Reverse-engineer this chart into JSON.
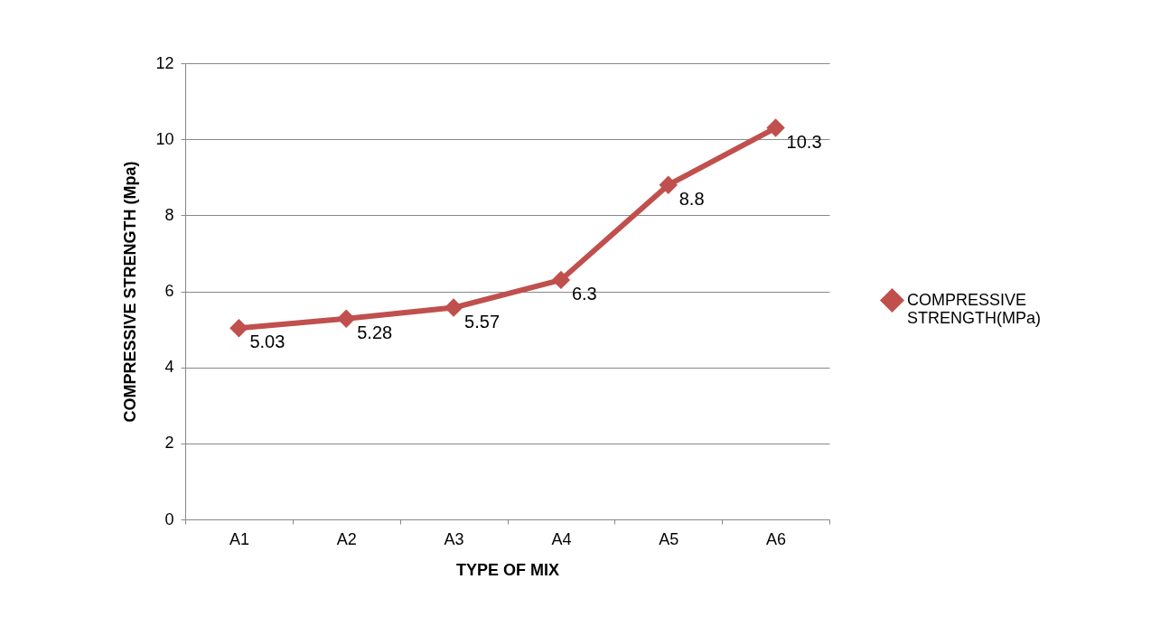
{
  "chart_data": {
    "type": "line",
    "xlabel": "TYPE OF MIX",
    "ylabel": "COMPRESSIVE STRENGTH (Mpa)",
    "categories": [
      "A1",
      "A2",
      "A3",
      "A4",
      "A5",
      "A6"
    ],
    "series": [
      {
        "name": "COMPRESSIVE STRENGTH(MPa)",
        "color": "#c0504d",
        "values": [
          5.03,
          5.28,
          5.57,
          6.3,
          8.8,
          10.3
        ]
      }
    ],
    "ylim": [
      0,
      12
    ],
    "yticks": [
      0,
      2,
      4,
      6,
      8,
      10,
      12
    ],
    "grid": "y",
    "legend": "right",
    "marker": "diamond",
    "line_style": "solid",
    "data_labels": true
  }
}
